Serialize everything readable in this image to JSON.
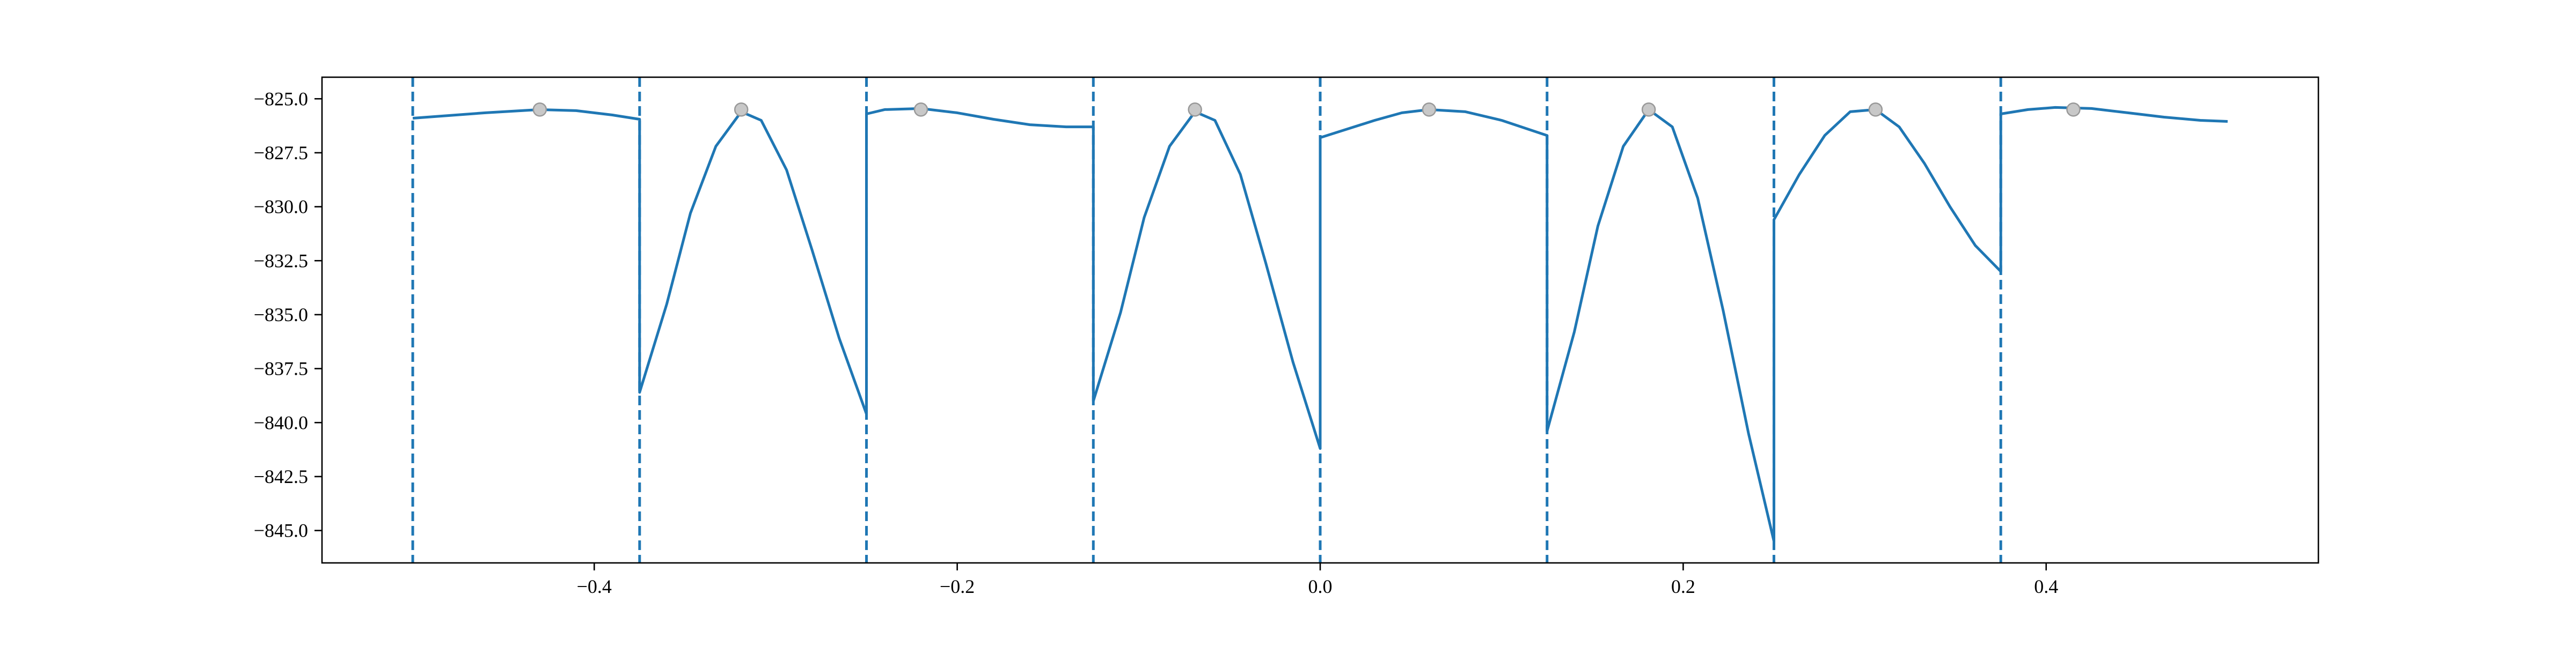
{
  "colors": {
    "line": "#1f77b4",
    "marker_fill": "#c8c8c8",
    "marker_edge": "#999999",
    "axes": "#000000",
    "background": "#ffffff"
  },
  "chart_data": {
    "type": "line",
    "title": "",
    "xlabel": "",
    "ylabel": "",
    "xlim": [
      -0.55,
      0.55
    ],
    "ylim": [
      -846.5,
      -824.0
    ],
    "grid": false,
    "legend": "none",
    "x_ticks": [
      {
        "value": -0.4,
        "label": "−0.4"
      },
      {
        "value": -0.2,
        "label": "−0.2"
      },
      {
        "value": 0.0,
        "label": "0.0"
      },
      {
        "value": 0.2,
        "label": "0.2"
      },
      {
        "value": 0.4,
        "label": "0.4"
      }
    ],
    "y_ticks": [
      {
        "value": -825.0,
        "label": "−825.0"
      },
      {
        "value": -827.5,
        "label": "−827.5"
      },
      {
        "value": -830.0,
        "label": "−830.0"
      },
      {
        "value": -832.5,
        "label": "−832.5"
      },
      {
        "value": -835.0,
        "label": "−835.0"
      },
      {
        "value": -837.5,
        "label": "−837.5"
      },
      {
        "value": -840.0,
        "label": "−840.0"
      },
      {
        "value": -842.5,
        "label": "−842.5"
      },
      {
        "value": -845.0,
        "label": "−845.0"
      }
    ],
    "segment_boundaries": [
      -0.5,
      -0.375,
      -0.25,
      -0.125,
      0.0,
      0.125,
      0.25,
      0.375
    ],
    "series": [
      {
        "name": "curve",
        "style": "solid",
        "points": [
          [
            -0.5,
            -825.9
          ],
          [
            -0.46,
            -825.65
          ],
          [
            -0.43,
            -825.5
          ],
          [
            -0.41,
            -825.55
          ],
          [
            -0.39,
            -825.75
          ],
          [
            -0.375,
            -825.95
          ],
          [
            -0.375,
            -838.6
          ],
          [
            -0.36,
            -834.5
          ],
          [
            -0.347,
            -830.3
          ],
          [
            -0.333,
            -827.2
          ],
          [
            -0.319,
            -825.6
          ],
          [
            -0.308,
            -826.0
          ],
          [
            -0.294,
            -828.3
          ],
          [
            -0.28,
            -832.0
          ],
          [
            -0.265,
            -836.1
          ],
          [
            -0.25,
            -839.6
          ],
          [
            -0.25,
            -825.7
          ],
          [
            -0.24,
            -825.5
          ],
          [
            -0.22,
            -825.45
          ],
          [
            -0.2,
            -825.65
          ],
          [
            -0.18,
            -825.95
          ],
          [
            -0.16,
            -826.2
          ],
          [
            -0.14,
            -826.3
          ],
          [
            -0.125,
            -826.3
          ],
          [
            -0.125,
            -839.0
          ],
          [
            -0.11,
            -834.9
          ],
          [
            -0.097,
            -830.5
          ],
          [
            -0.083,
            -827.2
          ],
          [
            -0.069,
            -825.6
          ],
          [
            -0.058,
            -826.0
          ],
          [
            -0.044,
            -828.5
          ],
          [
            -0.03,
            -832.6
          ],
          [
            -0.015,
            -837.2
          ],
          [
            0.0,
            -841.2
          ],
          [
            0.0,
            -826.8
          ],
          [
            0.03,
            -826.0
          ],
          [
            0.045,
            -825.65
          ],
          [
            0.06,
            -825.5
          ],
          [
            0.08,
            -825.6
          ],
          [
            0.1,
            -826.0
          ],
          [
            0.125,
            -826.7
          ],
          [
            0.125,
            -840.4
          ],
          [
            0.14,
            -835.8
          ],
          [
            0.153,
            -830.9
          ],
          [
            0.167,
            -827.2
          ],
          [
            0.181,
            -825.5
          ],
          [
            0.194,
            -826.3
          ],
          [
            0.208,
            -829.6
          ],
          [
            0.222,
            -834.8
          ],
          [
            0.236,
            -840.5
          ],
          [
            0.25,
            -845.5
          ],
          [
            0.25,
            -830.6
          ],
          [
            0.264,
            -828.5
          ],
          [
            0.278,
            -826.7
          ],
          [
            0.292,
            -825.6
          ],
          [
            0.306,
            -825.5
          ],
          [
            0.319,
            -826.3
          ],
          [
            0.333,
            -828.0
          ],
          [
            0.347,
            -830.0
          ],
          [
            0.361,
            -831.8
          ],
          [
            0.375,
            -833.0
          ],
          [
            0.375,
            -825.7
          ],
          [
            0.39,
            -825.5
          ],
          [
            0.405,
            -825.4
          ],
          [
            0.425,
            -825.45
          ],
          [
            0.445,
            -825.65
          ],
          [
            0.465,
            -825.85
          ],
          [
            0.485,
            -826.0
          ],
          [
            0.5,
            -826.05
          ]
        ]
      },
      {
        "name": "maxima",
        "style": "markers",
        "points": [
          [
            -0.43,
            -825.5
          ],
          [
            -0.319,
            -825.5
          ],
          [
            -0.22,
            -825.5
          ],
          [
            -0.069,
            -825.5
          ],
          [
            0.06,
            -825.5
          ],
          [
            0.181,
            -825.5
          ],
          [
            0.306,
            -825.5
          ],
          [
            0.415,
            -825.5
          ]
        ]
      }
    ]
  }
}
